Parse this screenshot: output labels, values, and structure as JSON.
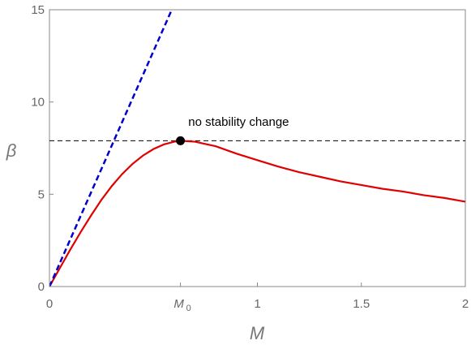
{
  "chart_data": {
    "type": "line",
    "xlabel": "M",
    "ylabel": "β",
    "xlim": [
      0,
      2
    ],
    "ylim": [
      0,
      15
    ],
    "x_ticks": [
      {
        "value": 0,
        "label": "0"
      },
      {
        "value": 0.63,
        "label": "M",
        "subscript": "0"
      },
      {
        "value": 1,
        "label": "1"
      },
      {
        "value": 1.5,
        "label": "1.5"
      },
      {
        "value": 2,
        "label": "2"
      }
    ],
    "y_ticks": [
      {
        "value": 0,
        "label": "0"
      },
      {
        "value": 5,
        "label": "5"
      },
      {
        "value": 10,
        "label": "10"
      },
      {
        "value": 15,
        "label": "15"
      }
    ],
    "grid": false,
    "series": [
      {
        "style": "solid",
        "color": "#e00000",
        "x": [
          0,
          0.05,
          0.1,
          0.15,
          0.2,
          0.25,
          0.3,
          0.35,
          0.4,
          0.45,
          0.5,
          0.55,
          0.6,
          0.63,
          0.7,
          0.8,
          0.9,
          1.0,
          1.1,
          1.2,
          1.3,
          1.4,
          1.5,
          1.6,
          1.7,
          1.8,
          1.9,
          2.0
        ],
        "y": [
          0,
          1.0,
          2.0,
          2.95,
          3.85,
          4.7,
          5.45,
          6.1,
          6.65,
          7.1,
          7.45,
          7.7,
          7.85,
          7.9,
          7.85,
          7.6,
          7.2,
          6.85,
          6.5,
          6.2,
          5.95,
          5.7,
          5.5,
          5.3,
          5.15,
          4.95,
          4.8,
          4.6
        ]
      },
      {
        "style": "dashed",
        "color": "#0000cc",
        "x": [
          0,
          0.6
        ],
        "y": [
          0,
          15.3
        ]
      }
    ],
    "reference_line": {
      "y": 7.9,
      "style": "dashed",
      "color": "#000000"
    },
    "marker": {
      "x": 0.63,
      "y": 7.9,
      "color": "#000000"
    },
    "annotation": {
      "text": "no stability change",
      "x": 0.91,
      "y": 8.7
    }
  }
}
